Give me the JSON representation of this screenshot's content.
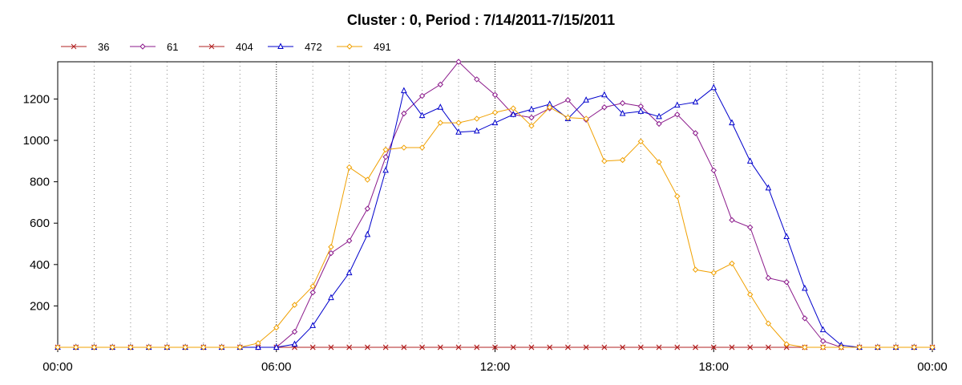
{
  "chart_data": {
    "type": "line",
    "title": "Cluster : 0, Period : 7/14/2011-7/15/2011",
    "xlabel": "",
    "ylabel": "",
    "x_tick_labels": [
      "00:00",
      "06:00",
      "12:00",
      "18:00",
      "00:00"
    ],
    "y_ticks": [
      200,
      400,
      600,
      800,
      1000,
      1200
    ],
    "ylim": [
      0,
      1380
    ],
    "xlim_hours": [
      0,
      24
    ],
    "grid": "vertical dotted",
    "legend_position": "top-left",
    "x_hours": [
      0,
      0.5,
      1,
      1.5,
      2,
      2.5,
      3,
      3.5,
      4,
      4.5,
      5,
      5.5,
      6,
      6.5,
      7,
      7.5,
      8,
      8.5,
      9,
      9.5,
      10,
      10.5,
      11,
      11.5,
      12,
      12.5,
      13,
      13.5,
      14,
      14.5,
      15,
      15.5,
      16,
      16.5,
      17,
      17.5,
      18,
      18.5,
      19,
      19.5,
      20,
      20.5,
      21,
      21.5,
      22,
      22.5,
      23,
      23.5,
      24
    ],
    "series": [
      {
        "name": "36",
        "color": "#b22222",
        "marker": "x",
        "values": [
          0,
          0,
          0,
          0,
          0,
          0,
          0,
          0,
          0,
          0,
          0,
          0,
          0,
          0,
          0,
          0,
          0,
          0,
          0,
          0,
          0,
          0,
          0,
          0,
          0,
          0,
          0,
          0,
          0,
          0,
          0,
          0,
          0,
          0,
          0,
          0,
          0,
          0,
          0,
          0,
          0,
          0,
          0,
          0,
          0,
          0,
          0,
          0,
          0
        ]
      },
      {
        "name": "61",
        "color": "#8b1a8b",
        "marker": "diamond",
        "values": [
          0,
          0,
          0,
          0,
          0,
          0,
          0,
          0,
          0,
          0,
          0,
          0,
          0,
          75,
          265,
          455,
          515,
          670,
          920,
          1130,
          1215,
          1270,
          1380,
          1295,
          1220,
          1125,
          1110,
          1155,
          1195,
          1100,
          1160,
          1180,
          1165,
          1080,
          1125,
          1035,
          855,
          615,
          580,
          335,
          315,
          140,
          30,
          0,
          0,
          0,
          0,
          0,
          0
        ]
      },
      {
        "name": "404",
        "color": "#b22222",
        "marker": "x",
        "values": [
          0,
          0,
          0,
          0,
          0,
          0,
          0,
          0,
          0,
          0,
          0,
          0,
          0,
          0,
          0,
          0,
          0,
          0,
          0,
          0,
          0,
          0,
          0,
          0,
          0,
          0,
          0,
          0,
          0,
          0,
          0,
          0,
          0,
          0,
          0,
          0,
          0,
          0,
          0,
          0,
          0,
          0,
          0,
          0,
          0,
          0,
          0,
          0,
          0
        ]
      },
      {
        "name": "472",
        "color": "#0000cc",
        "marker": "triangle",
        "values": [
          0,
          0,
          0,
          0,
          0,
          0,
          0,
          0,
          0,
          0,
          0,
          0,
          0,
          15,
          105,
          240,
          360,
          545,
          855,
          1240,
          1120,
          1160,
          1040,
          1045,
          1085,
          1125,
          1150,
          1175,
          1105,
          1195,
          1220,
          1130,
          1140,
          1115,
          1170,
          1185,
          1255,
          1085,
          900,
          770,
          535,
          285,
          85,
          10,
          0,
          0,
          0,
          0,
          0
        ]
      },
      {
        "name": "491",
        "color": "#f0a000",
        "marker": "diamond",
        "values": [
          0,
          0,
          0,
          0,
          0,
          0,
          0,
          0,
          0,
          0,
          0,
          20,
          95,
          205,
          295,
          485,
          870,
          810,
          955,
          965,
          965,
          1085,
          1085,
          1105,
          1135,
          1155,
          1070,
          1160,
          1110,
          1105,
          900,
          905,
          995,
          895,
          730,
          375,
          360,
          405,
          255,
          115,
          15,
          0,
          0,
          0,
          0,
          0,
          0,
          0,
          0
        ]
      }
    ]
  }
}
